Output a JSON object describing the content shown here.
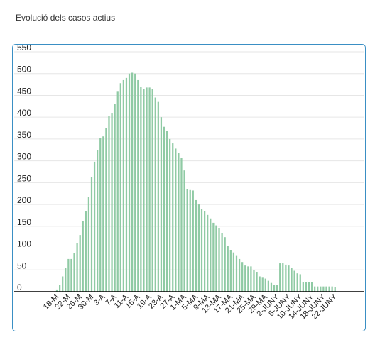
{
  "page": {
    "title": "Evolució dels casos actius"
  },
  "colors": {
    "bar": "#8fcaa4",
    "card_border": "#3a8fc4",
    "grid": "#e6e6e6",
    "axis": "#000000"
  },
  "chart_data": {
    "type": "bar",
    "title": "",
    "xlabel": "",
    "ylabel": "",
    "ylim": [
      0,
      550
    ],
    "yticks": [
      0,
      50,
      100,
      150,
      200,
      250,
      300,
      350,
      400,
      450,
      500,
      550
    ],
    "grid": true,
    "legend": "none",
    "categories": [
      "18-M",
      "19-M",
      "20-M",
      "21-M",
      "22-M",
      "23-M",
      "24-M",
      "25-M",
      "26-M",
      "27-M",
      "28-M",
      "29-M",
      "30-M",
      "31-M",
      "1-A",
      "2-A",
      "3-A",
      "4-A",
      "5-A",
      "6-A",
      "7-A",
      "8-A",
      "9-A",
      "10-A",
      "11-A",
      "12-A",
      "13-A",
      "14-A",
      "15-A",
      "16-A",
      "17-A",
      "18-A",
      "19-A",
      "20-A",
      "21-A",
      "22-A",
      "23-A",
      "24-A",
      "25-A",
      "26-A",
      "27-A",
      "28-A",
      "29-A",
      "30-A",
      "1-MA",
      "2-MA",
      "3-MA",
      "4-MA",
      "5-MA",
      "6-MA",
      "7-MA",
      "8-MA",
      "9-MA",
      "10-MA",
      "11-MA",
      "12-MA",
      "13-MA",
      "14-MA",
      "15-MA",
      "16-MA",
      "17-MA",
      "18-MA",
      "19-MA",
      "20-MA",
      "21-MA",
      "22-MA",
      "23-MA",
      "24-MA",
      "25-MA",
      "26-MA",
      "27-MA",
      "28-MA",
      "29-MA",
      "30-MA",
      "31-MA",
      "1-JUNY",
      "2-JUNY",
      "3-JUNY",
      "4-JUNY",
      "5-JUNY",
      "6-JUNY",
      "7-JUNY",
      "8-JUNY",
      "9-JUNY",
      "10-JUNY",
      "11-JUNY",
      "12-JUNY",
      "13-JUNY",
      "14-JUNY",
      "15-JUNY",
      "16-JUNY",
      "17-JUNY",
      "18-JUNY",
      "19-JUNY",
      "20-JUNY",
      "21-JUNY",
      "22-JUNY",
      "23-JUNY",
      "24-JUNY",
      "25-JUNY"
    ],
    "values": [
      5,
      15,
      35,
      55,
      75,
      75,
      88,
      112,
      130,
      162,
      185,
      218,
      262,
      298,
      325,
      352,
      356,
      375,
      402,
      410,
      430,
      460,
      478,
      485,
      490,
      500,
      502,
      500,
      485,
      470,
      465,
      468,
      468,
      465,
      445,
      435,
      400,
      378,
      368,
      350,
      340,
      328,
      318,
      307,
      278,
      235,
      233,
      232,
      210,
      200,
      190,
      185,
      176,
      168,
      158,
      152,
      145,
      135,
      125,
      105,
      95,
      90,
      82,
      75,
      68,
      60,
      58,
      58,
      50,
      45,
      35,
      32,
      30,
      25,
      20,
      16,
      15,
      65,
      65,
      62,
      60,
      55,
      48,
      42,
      40,
      22,
      22,
      22,
      22,
      12,
      12,
      12,
      12,
      12,
      12,
      12,
      10,
      0,
      0,
      0
    ],
    "xtick_labels": [
      "18-M",
      "22-M",
      "26-M",
      "30-M",
      "3-A",
      "7-A",
      "11-A",
      "15-A",
      "19-A",
      "23-A",
      "27-A",
      "1-MA",
      "5-MA",
      "9-MA",
      "13-MA",
      "17-MA",
      "21-MA",
      "25-MA",
      "29-MA",
      "2-JUNY",
      "6-JUNY",
      "10-JUNY",
      "14-JUNY",
      "18-JUNY",
      "22-JUNY"
    ]
  }
}
